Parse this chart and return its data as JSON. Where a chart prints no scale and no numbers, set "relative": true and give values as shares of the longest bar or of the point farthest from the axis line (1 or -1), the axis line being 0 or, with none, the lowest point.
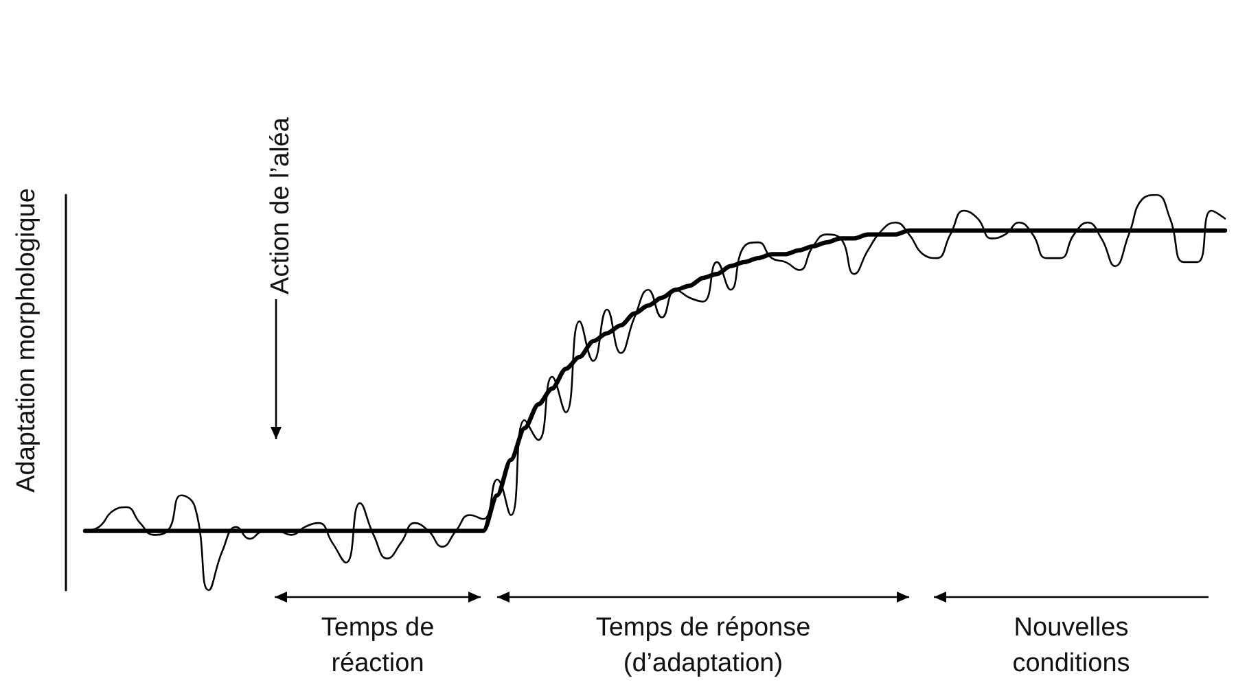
{
  "chart_data": {
    "type": "line",
    "relative": true,
    "ylabel": "Adaptation morphologique",
    "categories": [
      null,
      null,
      null,
      null,
      null,
      null,
      null,
      null,
      null,
      null,
      null,
      null,
      null,
      null,
      null,
      null,
      null,
      null,
      null,
      null,
      null,
      null,
      null,
      null,
      null,
      null,
      null,
      null,
      null,
      null,
      null,
      null,
      null,
      null,
      null,
      null,
      null,
      null,
      null,
      null,
      null,
      null,
      null,
      null,
      null,
      null,
      null,
      null,
      null,
      null,
      null,
      null,
      null,
      null,
      null,
      null,
      null,
      null,
      null,
      null,
      null,
      null,
      null,
      null,
      null,
      null,
      null,
      null,
      null,
      null,
      null,
      null,
      null,
      null,
      null,
      null,
      null,
      null,
      null,
      null,
      null,
      null,
      null,
      null
    ],
    "series": [
      {
        "color": "#000000",
        "values": [
          0.15,
          0.15,
          0.15,
          0.15,
          0.15,
          0.15,
          0.15,
          0.15,
          0.15,
          0.15,
          0.15,
          0.15,
          0.15,
          0.15,
          0.15,
          0.15,
          0.15,
          0.15,
          0.15,
          0.15,
          0.15,
          0.15,
          0.15,
          0.15,
          0.15,
          0.15,
          0.15,
          0.15,
          0.15,
          0.15,
          0.24,
          0.33,
          0.41,
          0.47,
          0.51,
          0.56,
          0.59,
          0.63,
          0.65,
          0.67,
          0.7,
          0.72,
          0.74,
          0.76,
          0.77,
          0.79,
          0.8,
          0.82,
          0.83,
          0.84,
          0.85,
          0.85,
          0.86,
          0.87,
          0.88,
          0.89,
          0.89,
          0.9,
          0.9,
          0.9,
          0.91,
          0.91,
          0.91,
          0.91,
          0.91,
          0.91,
          0.91,
          0.91,
          0.91,
          0.91,
          0.91,
          0.91,
          0.91,
          0.91,
          0.91,
          0.91,
          0.91,
          0.91,
          0.91,
          0.91,
          0.91,
          0.91,
          0.91,
          0.91
        ]
      },
      {
        "color": "#000000",
        "values": [
          0.15,
          0.16,
          0.2,
          0.21,
          0.17,
          0.14,
          0.15,
          0.24,
          0.21,
          0,
          0.1,
          0.16,
          0.13,
          0.15,
          0.15,
          0.14,
          0.16,
          0.17,
          0.12,
          0.07,
          0.22,
          0.14,
          0.08,
          0.12,
          0.17,
          0.15,
          0.11,
          0.15,
          0.19,
          0.18,
          0.28,
          0.19,
          0.43,
          0.38,
          0.54,
          0.45,
          0.68,
          0.58,
          0.71,
          0.6,
          0.69,
          0.76,
          0.69,
          0.76,
          0.74,
          0.73,
          0.83,
          0.76,
          0.87,
          0.88,
          0.84,
          0.83,
          0.81,
          0.87,
          0.9,
          0.89,
          0.8,
          0.86,
          0.91,
          0.93,
          0.9,
          0.85,
          0.84,
          0.9,
          0.96,
          0.94,
          0.89,
          0.9,
          0.93,
          0.9,
          0.84,
          0.84,
          0.9,
          0.93,
          0.89,
          0.82,
          0.9,
          0.99,
          1,
          0.94,
          0.83,
          0.83,
          0.96,
          0.94
        ]
      }
    ],
    "annotations": [
      "Action de l’aléa",
      "Temps de réaction",
      "Temps de réponse (d’adaptation)",
      "Nouvelles conditions"
    ],
    "marker": "none",
    "line_style": "solid"
  }
}
